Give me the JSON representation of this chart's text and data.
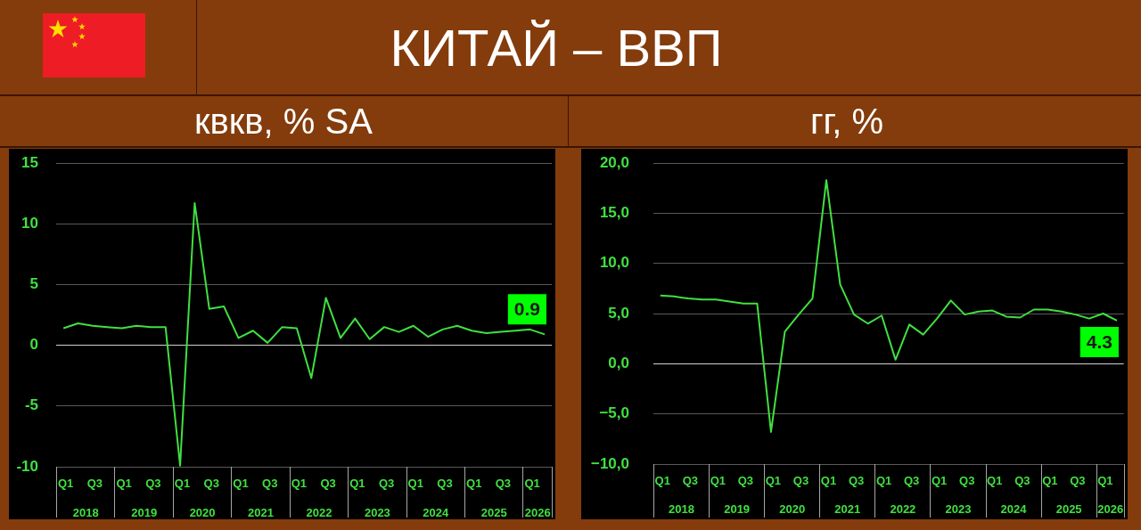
{
  "chart_data": [
    {
      "type": "line",
      "title": "КИТАЙ – ВВП",
      "subtitle": "квкв, % SA",
      "categories": [
        "Q1",
        null,
        "Q3",
        null,
        "Q1",
        null,
        "Q3",
        null,
        "Q1",
        null,
        "Q3",
        null,
        "Q1",
        null,
        "Q3",
        null,
        "Q1",
        null,
        "Q3",
        null,
        "Q1",
        null,
        "Q3",
        null,
        "Q1",
        null,
        "Q3",
        null,
        "Q1",
        null,
        "Q3",
        null,
        "Q1",
        null
      ],
      "values": [
        1.4,
        1.8,
        1.6,
        1.5,
        1.4,
        1.6,
        1.5,
        1.5,
        -9.9,
        11.7,
        3.0,
        3.2,
        0.6,
        1.2,
        0.2,
        1.5,
        1.4,
        -2.7,
        3.9,
        0.6,
        2.2,
        0.5,
        1.5,
        1.1,
        1.6,
        0.7,
        1.3,
        1.6,
        1.2,
        1.0,
        1.1,
        1.2,
        1.3,
        0.9
      ],
      "value_labels": [
        null,
        null,
        null,
        null,
        null,
        null,
        null,
        null,
        null,
        null,
        null,
        null,
        null,
        null,
        null,
        null,
        null,
        null,
        null,
        null,
        null,
        null,
        null,
        null,
        null,
        null,
        null,
        null,
        null,
        null,
        null,
        null,
        null,
        "0.9"
      ],
      "color": "#40e040",
      "ylim": [
        -10,
        15
      ],
      "yticks": [
        -10,
        -5,
        0,
        5,
        10,
        15
      ],
      "grid": "y",
      "marker": "none",
      "annotations": [
        "2018",
        "2019",
        "2020",
        "2021",
        "2022",
        "2023",
        "2024",
        "2025",
        "2026"
      ]
    },
    {
      "type": "line",
      "subtitle": "гг, %",
      "categories": [
        "Q1",
        null,
        "Q3",
        null,
        "Q1",
        null,
        "Q3",
        null,
        "Q1",
        null,
        "Q3",
        null,
        "Q1",
        null,
        "Q3",
        null,
        "Q1",
        null,
        "Q3",
        null,
        "Q1",
        null,
        "Q3",
        null,
        "Q1",
        null,
        "Q3",
        null,
        "Q1",
        null,
        "Q3",
        null,
        "Q1",
        null
      ],
      "values": [
        6.8,
        6.7,
        6.5,
        6.4,
        6.4,
        6.2,
        6.0,
        6.0,
        -6.8,
        3.2,
        4.9,
        6.5,
        18.3,
        7.9,
        4.9,
        4.0,
        4.8,
        0.4,
        3.9,
        2.9,
        4.5,
        6.3,
        4.9,
        5.2,
        5.3,
        4.7,
        4.6,
        5.4,
        5.4,
        5.2,
        4.9,
        4.5,
        5.0,
        4.3
      ],
      "value_labels": [
        null,
        null,
        null,
        null,
        null,
        null,
        null,
        null,
        null,
        null,
        null,
        null,
        null,
        null,
        null,
        null,
        null,
        null,
        null,
        null,
        null,
        null,
        null,
        null,
        null,
        null,
        null,
        null,
        null,
        null,
        null,
        null,
        null,
        "4.3"
      ],
      "color": "#40e040",
      "ylim": [
        -10,
        20
      ],
      "yticks": [
        {
          "value": -10,
          "label": "−10,0"
        },
        {
          "value": -5,
          "label": "−5,0"
        },
        {
          "value": 0,
          "label": "0,0"
        },
        {
          "value": 5,
          "label": "5,0"
        },
        {
          "value": 10,
          "label": "10,0"
        },
        {
          "value": 15,
          "label": "15,0"
        },
        {
          "value": 20,
          "label": "20,0"
        }
      ],
      "grid": "y",
      "marker": "none",
      "annotations": [
        "2018",
        "2019",
        "2020",
        "2021",
        "2022",
        "2023",
        "2024",
        "2025",
        "2026"
      ]
    }
  ]
}
